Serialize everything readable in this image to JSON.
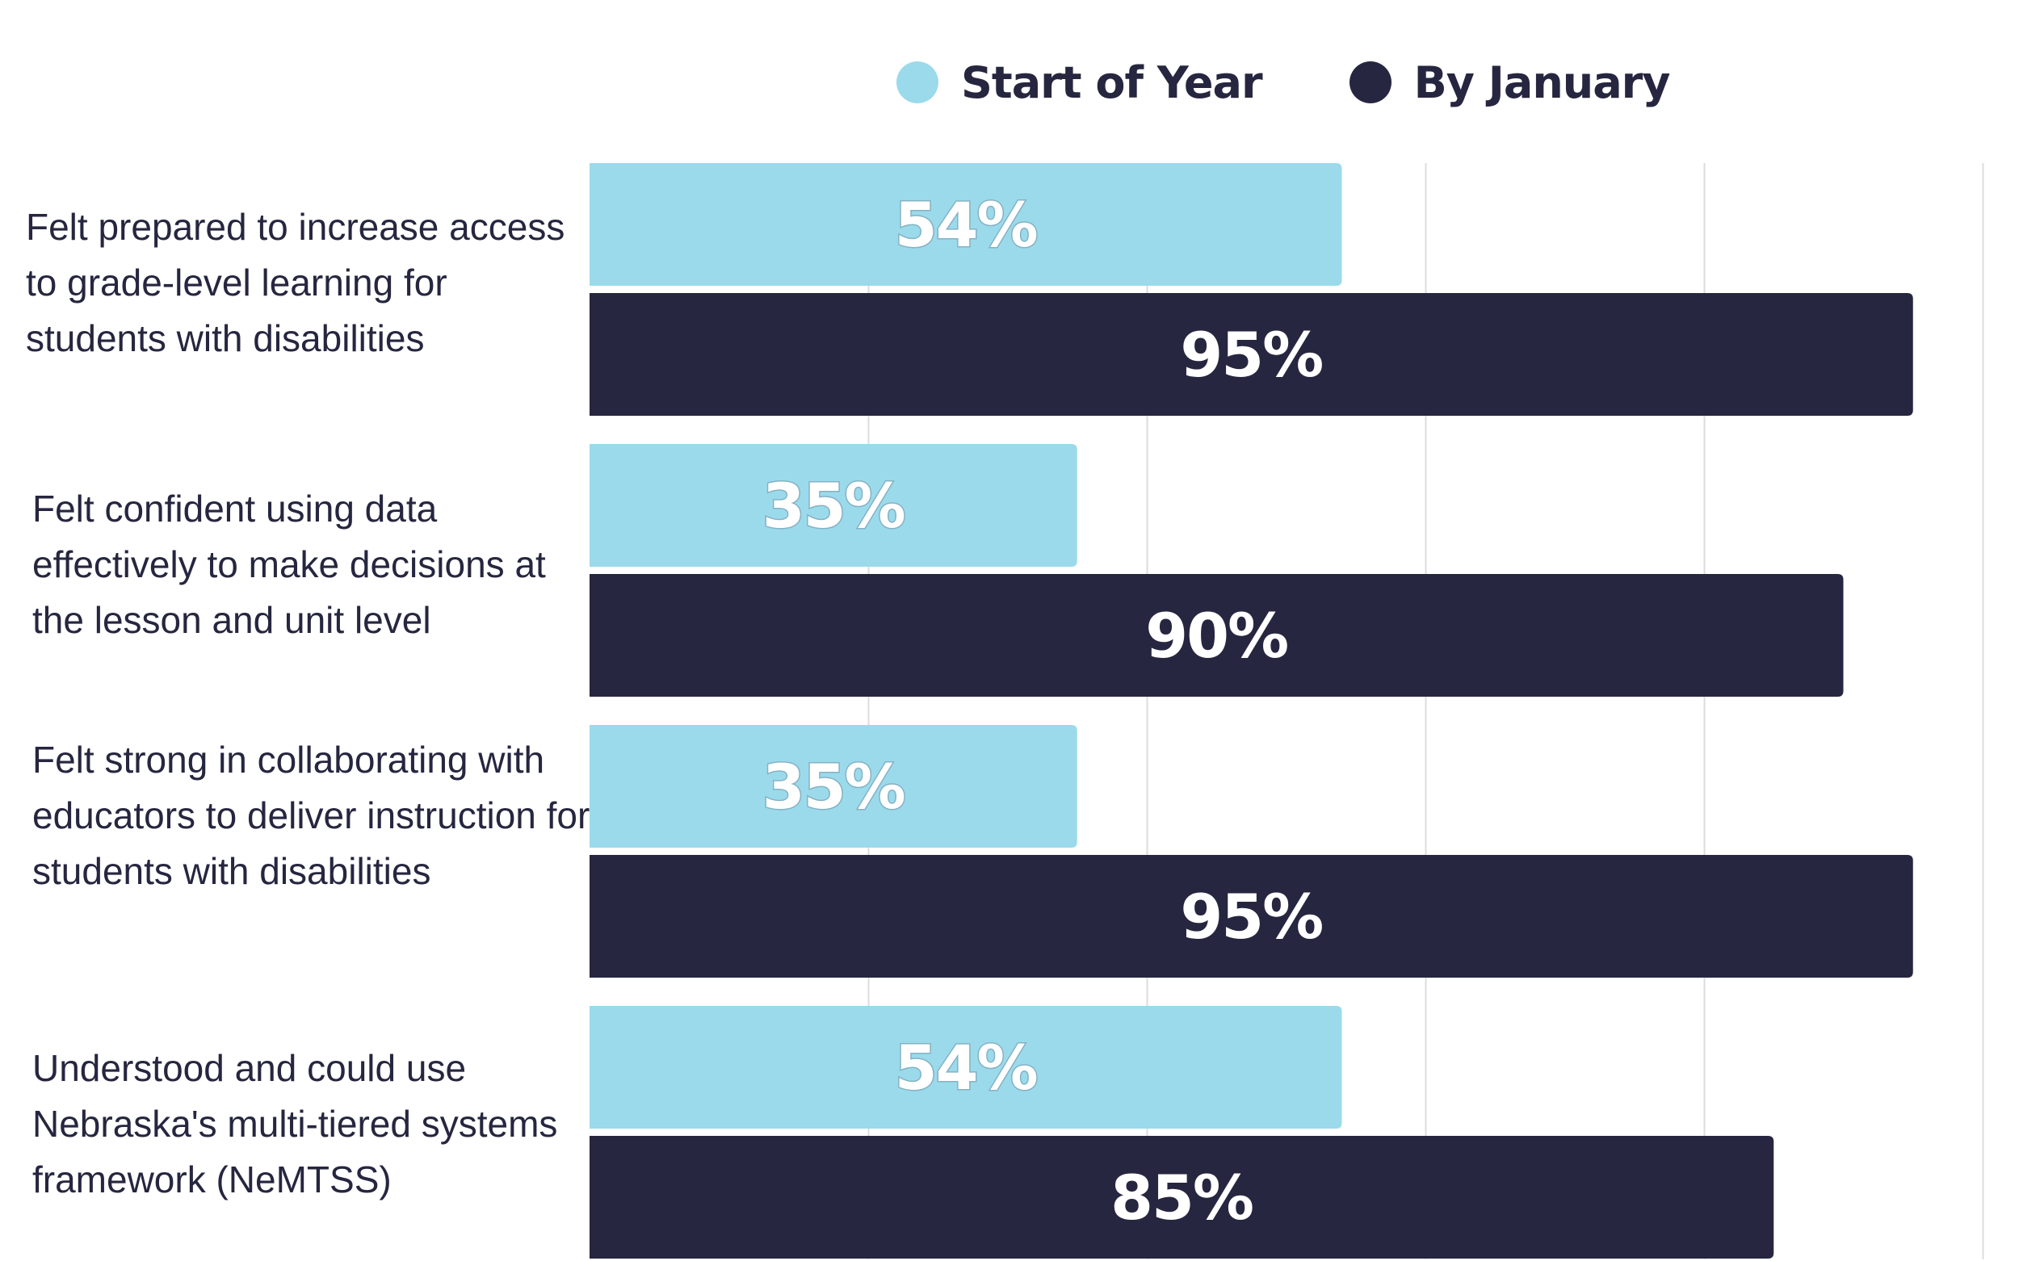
{
  "chart_data": {
    "type": "bar",
    "orientation": "horizontal",
    "categories": [
      "Felt prepared to increase access to grade-level learning for students with disabilities",
      "Felt confident using data effectively to make decisions at the lesson and unit level",
      "Felt strong in collaborating with educators to deliver instruction for students with disabilities",
      "Understood and could use Nebraska's multi-tiered systems framework (NeMTSS)"
    ],
    "series": [
      {
        "name": "Start of Year",
        "values": [
          54,
          35,
          35,
          54
        ],
        "labels": [
          "54%",
          "35%",
          "35%",
          "54%"
        ],
        "color": "#9BDAEB"
      },
      {
        "name": "By January",
        "values": [
          95,
          90,
          95,
          85
        ],
        "labels": [
          "95%",
          "90%",
          "95%",
          "85%"
        ],
        "color": "#262640"
      }
    ],
    "xlim": [
      0,
      100
    ],
    "grid": true,
    "legend": "top",
    "axes_visible": false,
    "gridline_color": "#DCDCDC"
  }
}
